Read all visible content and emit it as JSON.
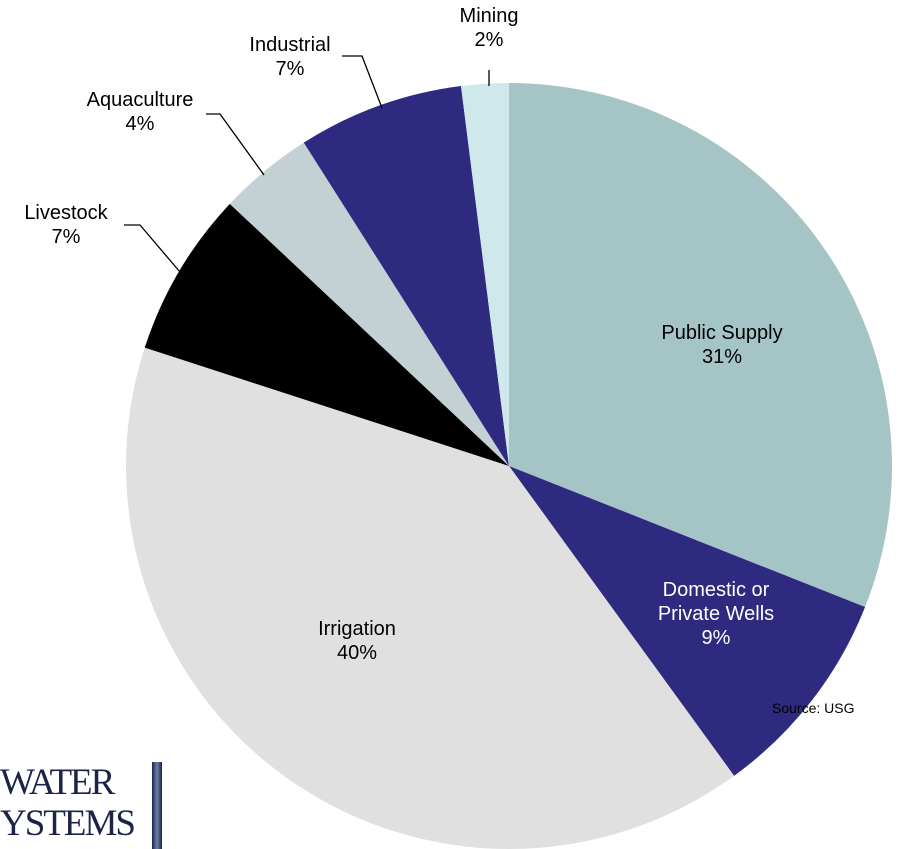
{
  "chart_data": {
    "type": "pie",
    "slices": [
      {
        "label": "Public Supply",
        "pct_label": "31%",
        "value": 31,
        "color": "#a5c4c6"
      },
      {
        "label": "Domestic or Private Wells",
        "label_lines": [
          "Domestic or",
          "Private Wells"
        ],
        "pct_label": "9%",
        "value": 9,
        "color": "#2d2a80"
      },
      {
        "label": "Irrigation",
        "pct_label": "40%",
        "value": 40,
        "color": "#e0e0e0"
      },
      {
        "label": "Livestock",
        "pct_label": "7%",
        "value": 7,
        "color": "#000000"
      },
      {
        "label": "Aquaculture",
        "pct_label": "4%",
        "value": 4,
        "color": "#c3d1d4"
      },
      {
        "label": "Industrial",
        "pct_label": "7%",
        "value": 7,
        "color": "#2d2a80"
      },
      {
        "label": "Mining",
        "pct_label": "2%",
        "value": 2,
        "color": "#cfe8eb"
      }
    ],
    "source": "Source: USG"
  },
  "logo": {
    "line1": "WATER",
    "line2": "YSTEMS"
  }
}
